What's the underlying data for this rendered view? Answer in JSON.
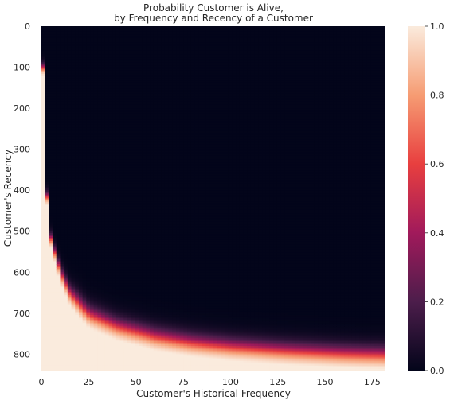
{
  "chart_data": {
    "type": "heatmap",
    "title_lines": [
      "Probability Customer is Alive,",
      "by Frequency and Recency of a Customer"
    ],
    "xlabel": "Customer's Historical Frequency",
    "ylabel": "Customer's Recency",
    "xlim": [
      0,
      182
    ],
    "ylim": [
      0,
      840
    ],
    "y_inverted": true,
    "xticks": [
      0,
      25,
      50,
      75,
      100,
      125,
      150,
      175
    ],
    "yticks": [
      0,
      100,
      200,
      300,
      400,
      500,
      600,
      700,
      800
    ],
    "colorbar": {
      "range": [
        0.0,
        1.0
      ],
      "ticks": [
        0.0,
        0.2,
        0.4,
        0.6,
        0.8,
        1.0
      ],
      "tick_labels": [
        "0.0",
        "0.2",
        "0.4",
        "0.6",
        "0.8",
        "1.0"
      ]
    },
    "colormap": "rocket",
    "colormap_stops": [
      "#03051a",
      "#4c1d4b",
      "#a11a5b",
      "#e83f3f",
      "#f69c73",
      "#faebdd"
    ],
    "boundary_curve_p05": {
      "frequency": [
        1,
        3,
        5,
        10,
        15,
        25,
        40,
        60,
        80,
        100,
        130,
        160,
        182
      ],
      "recency": [
        100,
        420,
        520,
        600,
        650,
        700,
        730,
        755,
        770,
        780,
        790,
        797,
        800
      ]
    },
    "grid": false,
    "legend": "none"
  }
}
